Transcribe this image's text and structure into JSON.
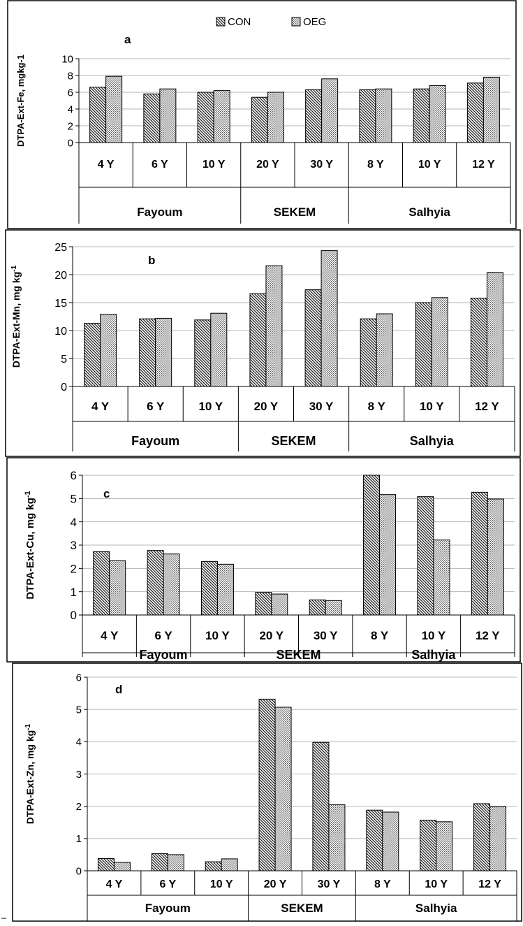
{
  "legend": {
    "items": [
      {
        "name": "CON",
        "pattern": "hatch"
      },
      {
        "name": "OEG",
        "pattern": "dots"
      }
    ]
  },
  "chart_data": [
    {
      "type": "bar",
      "panel_letter": "a",
      "ylabel": "DTPA-Ext-Fe, mgkg-1",
      "ylim": [
        0,
        10
      ],
      "yticks": [
        0,
        2,
        4,
        6,
        8,
        10
      ],
      "grid": true,
      "categories": [
        "4 Y",
        "6 Y",
        "10 Y",
        "20 Y",
        "30 Y",
        "8 Y",
        "10 Y",
        "12 Y"
      ],
      "groups": [
        {
          "name": "Fayoum",
          "span": 3
        },
        {
          "name": "SEKEM",
          "span": 2
        },
        {
          "name": "Salhyia",
          "span": 3
        }
      ],
      "series": [
        {
          "name": "CON",
          "values": [
            6.6,
            5.8,
            6.0,
            5.4,
            6.3,
            6.3,
            6.4,
            7.1
          ]
        },
        {
          "name": "OEG",
          "values": [
            7.9,
            6.4,
            6.2,
            6.0,
            7.6,
            6.4,
            6.8,
            7.8
          ]
        }
      ]
    },
    {
      "type": "bar",
      "panel_letter": "b",
      "ylabel": "DTPA-Ext-Mn, mg kg",
      "ylabel_sup": "-1",
      "ylim": [
        0,
        25
      ],
      "yticks": [
        0,
        5,
        10,
        15,
        20,
        25
      ],
      "grid": true,
      "categories": [
        "4 Y",
        "6 Y",
        "10 Y",
        "20 Y",
        "30 Y",
        "8 Y",
        "10 Y",
        "12 Y"
      ],
      "groups": [
        {
          "name": "Fayoum",
          "span": 3
        },
        {
          "name": "SEKEM",
          "span": 2
        },
        {
          "name": "Salhyia",
          "span": 3
        }
      ],
      "series": [
        {
          "name": "CON",
          "values": [
            11.3,
            12.1,
            11.9,
            16.6,
            17.3,
            12.1,
            15.0,
            15.8
          ]
        },
        {
          "name": "OEG",
          "values": [
            12.9,
            12.2,
            13.1,
            21.6,
            24.3,
            13.0,
            15.9,
            20.4
          ]
        }
      ]
    },
    {
      "type": "bar",
      "panel_letter": "c",
      "ylabel": "DTPA-Ext-Cu, mg kg",
      "ylabel_sup": "-1",
      "ylim": [
        0,
        6
      ],
      "yticks": [
        0,
        1,
        2,
        3,
        4,
        5,
        6
      ],
      "grid": true,
      "categories": [
        "4 Y",
        "6 Y",
        "10 Y",
        "20 Y",
        "30 Y",
        "8 Y",
        "10 Y",
        "12 Y"
      ],
      "groups": [
        {
          "name": "Fayoum",
          "span": 3
        },
        {
          "name": "SEKEM",
          "span": 2
        },
        {
          "name": "Salhyia",
          "span": 3
        }
      ],
      "series": [
        {
          "name": "CON",
          "values": [
            2.72,
            2.77,
            2.3,
            0.97,
            0.65,
            6.0,
            5.08,
            5.27
          ]
        },
        {
          "name": "OEG",
          "values": [
            2.33,
            2.62,
            2.18,
            0.9,
            0.62,
            5.17,
            3.22,
            4.98
          ]
        }
      ]
    },
    {
      "type": "bar",
      "panel_letter": "d",
      "ylabel": "DTPA-Ext-Zn, mg kg",
      "ylabel_sup": "-1",
      "ylim": [
        0,
        6
      ],
      "yticks": [
        0,
        1,
        2,
        3,
        4,
        5,
        6
      ],
      "grid": true,
      "categories": [
        "4 Y",
        "6 Y",
        "10 Y",
        "20 Y",
        "30 Y",
        "8 Y",
        "10 Y",
        "12 Y"
      ],
      "groups": [
        {
          "name": "Fayoum",
          "span": 3
        },
        {
          "name": "SEKEM",
          "span": 2
        },
        {
          "name": "Salhyia",
          "span": 3
        }
      ],
      "series": [
        {
          "name": "CON",
          "values": [
            0.38,
            0.53,
            0.28,
            5.32,
            3.98,
            1.88,
            1.57,
            2.08
          ]
        },
        {
          "name": "OEG",
          "values": [
            0.26,
            0.5,
            0.37,
            5.07,
            2.05,
            1.82,
            1.52,
            1.99
          ]
        }
      ]
    }
  ]
}
